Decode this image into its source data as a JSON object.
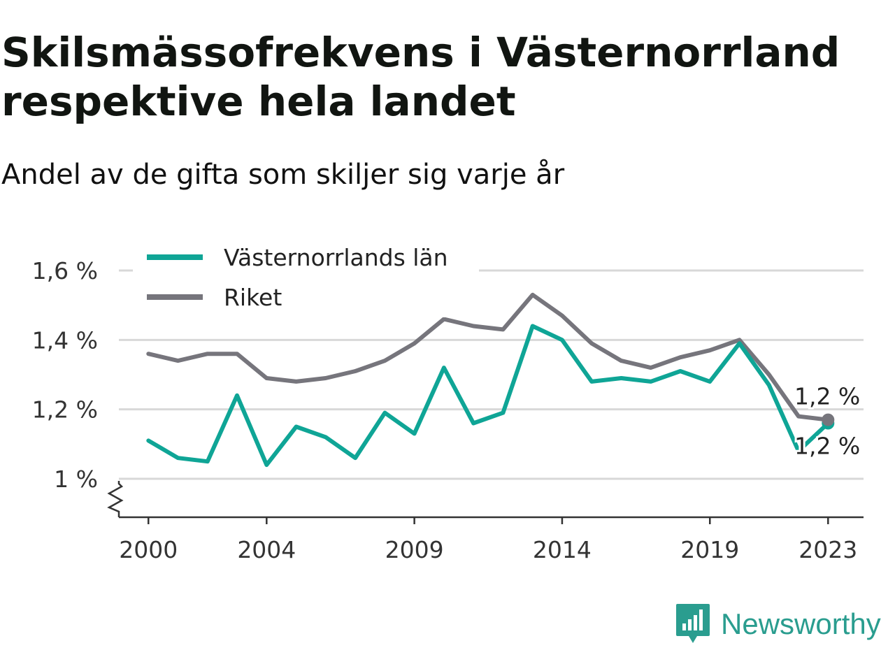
{
  "title": "Skilsmässofrekvens i Västernorrland respektive hela landet",
  "subtitle": "Andel av de gifta som skiljer sig varje år",
  "brand": {
    "name": "Newsworthy",
    "icon": "bar-chart-bubble-icon",
    "color": "#2a9d8f"
  },
  "chart_data": {
    "type": "line",
    "x": [
      2000,
      2001,
      2002,
      2003,
      2004,
      2005,
      2006,
      2007,
      2008,
      2009,
      2010,
      2011,
      2012,
      2013,
      2014,
      2015,
      2016,
      2017,
      2018,
      2019,
      2020,
      2021,
      2022,
      2023
    ],
    "series": [
      {
        "name": "Västernorrlands län",
        "color": "#0fa596",
        "values": [
          1.11,
          1.06,
          1.05,
          1.24,
          1.04,
          1.15,
          1.12,
          1.06,
          1.19,
          1.13,
          1.32,
          1.16,
          1.19,
          1.44,
          1.4,
          1.28,
          1.29,
          1.28,
          1.31,
          1.28,
          1.39,
          1.27,
          1.08,
          1.16
        ],
        "end_label": "1,2 %"
      },
      {
        "name": "Riket",
        "color": "#76757c",
        "values": [
          1.36,
          1.34,
          1.36,
          1.36,
          1.29,
          1.28,
          1.29,
          1.31,
          1.34,
          1.39,
          1.46,
          1.44,
          1.43,
          1.53,
          1.47,
          1.39,
          1.34,
          1.32,
          1.35,
          1.37,
          1.4,
          1.3,
          1.18,
          1.17
        ],
        "end_label": "1,2 %"
      }
    ],
    "y_ticks": [
      {
        "value": 1.0,
        "label": "1 %"
      },
      {
        "value": 1.2,
        "label": "1,2 %"
      },
      {
        "value": 1.4,
        "label": "1,4 %"
      },
      {
        "value": 1.6,
        "label": "1,6 %"
      }
    ],
    "x_ticks": [
      {
        "value": 2000,
        "label": "2000"
      },
      {
        "value": 2004,
        "label": "2004"
      },
      {
        "value": 2009,
        "label": "2009"
      },
      {
        "value": 2014,
        "label": "2014"
      },
      {
        "value": 2019,
        "label": "2019"
      },
      {
        "value": 2023,
        "label": "2023"
      }
    ],
    "xlim": [
      1999,
      2024.2
    ],
    "ylim": [
      0.89,
      1.6
    ],
    "axis_break": true,
    "grid": "horizontal",
    "legend_position": "top-left"
  }
}
